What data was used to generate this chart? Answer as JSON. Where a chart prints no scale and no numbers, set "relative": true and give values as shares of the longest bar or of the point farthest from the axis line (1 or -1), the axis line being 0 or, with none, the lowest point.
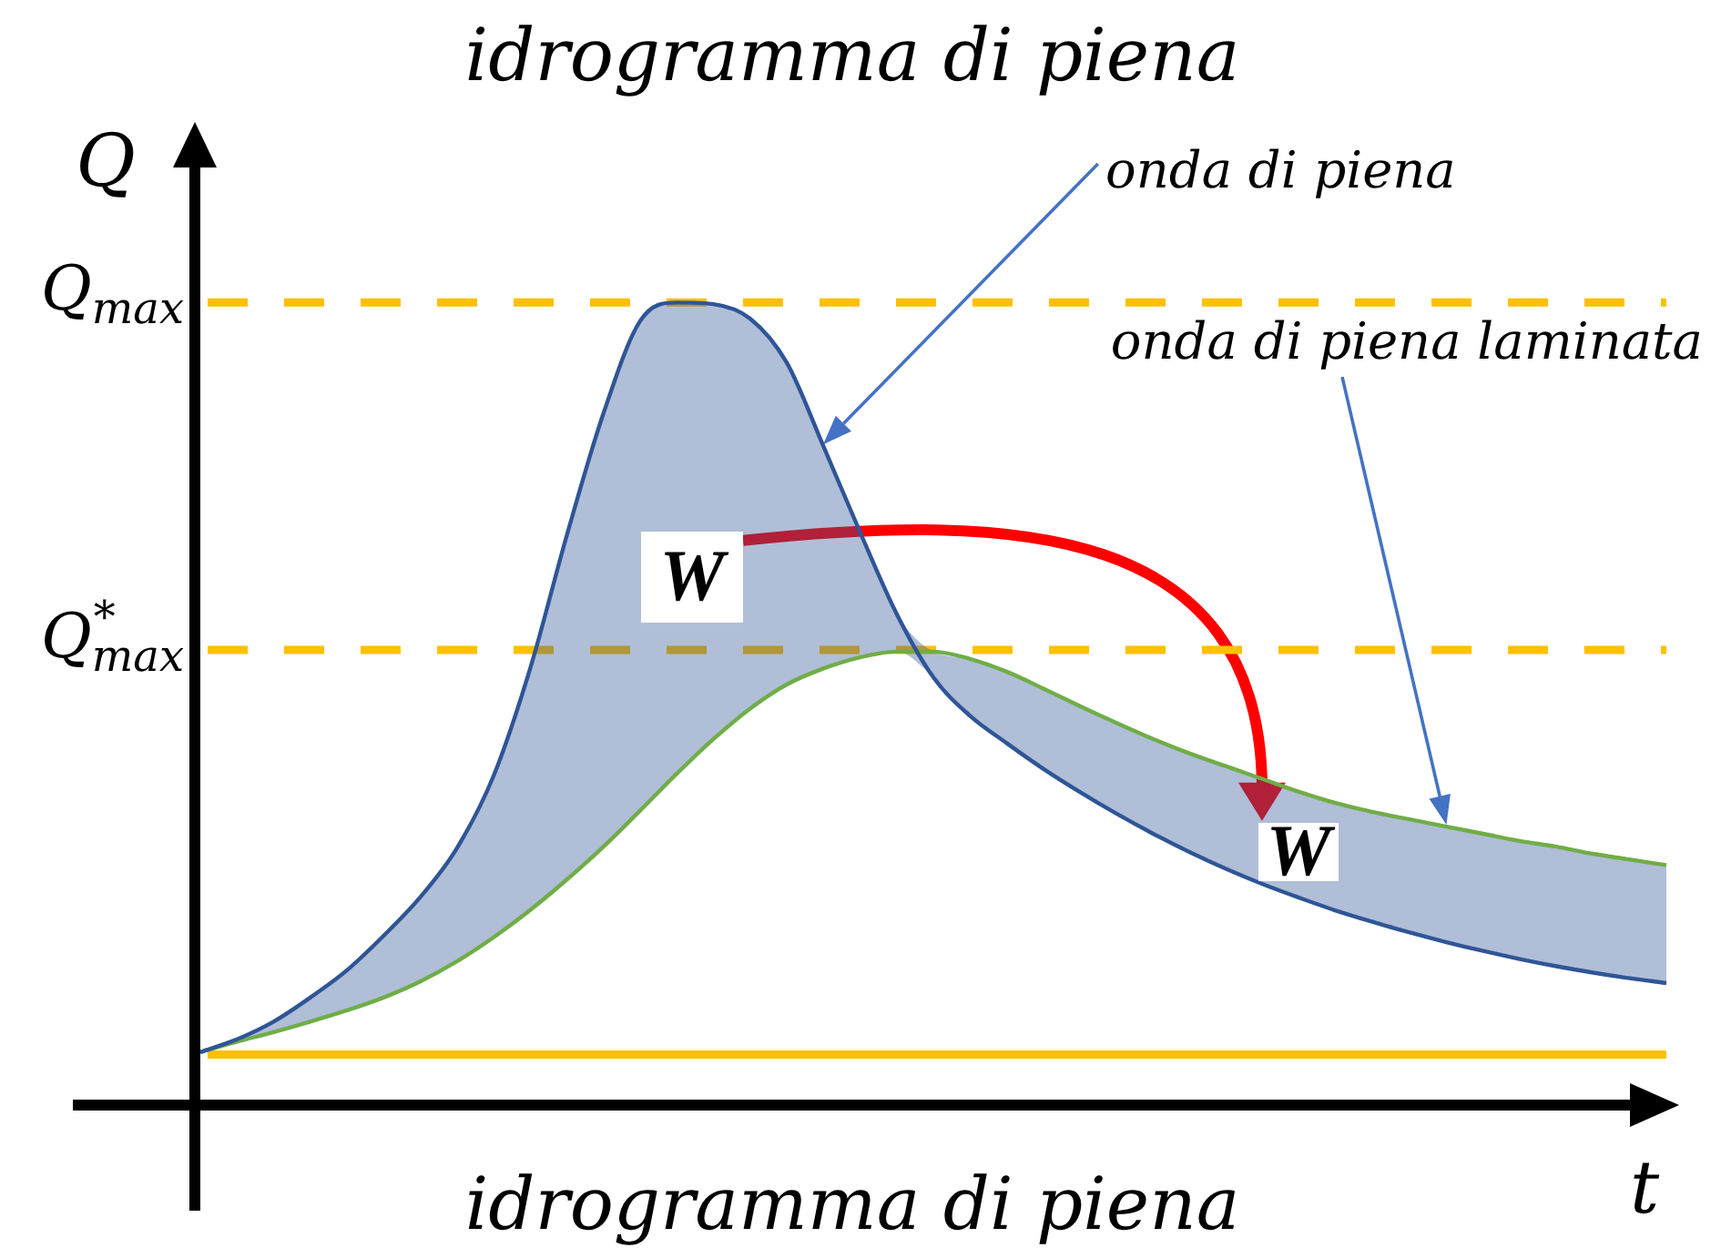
{
  "chart_data": {
    "type": "line",
    "title": "idrogramma di piena",
    "xlabel": "t",
    "ylabel": "Q",
    "relative": true,
    "marker": "none",
    "categories": [
      null,
      null,
      null,
      null,
      null,
      null,
      null,
      null,
      null,
      null,
      null,
      null,
      null,
      null,
      null,
      null,
      null,
      null,
      null,
      null,
      null,
      null,
      null,
      null,
      null,
      null,
      null,
      null,
      null,
      null,
      null,
      null,
      null,
      null,
      null,
      null,
      null,
      null,
      null,
      null,
      null
    ],
    "series": [
      {
        "name": "onda di piena",
        "color": "#2f5597",
        "values": [
          0.066,
          0.082,
          0.104,
          0.134,
          0.168,
          0.211,
          0.259,
          0.32,
          0.41,
          0.544,
          0.71,
          0.862,
          0.977,
          1.0,
          0.998,
          0.98,
          0.925,
          0.821,
          0.714,
          0.612,
          0.533,
          0.485,
          0.451,
          0.419,
          0.39,
          0.363,
          0.338,
          0.315,
          0.294,
          0.275,
          0.258,
          0.242,
          0.228,
          0.215,
          0.203,
          0.192,
          0.182,
          0.173,
          0.165,
          0.158,
          0.152
        ],
        "lower": [
          0.066,
          0.079,
          0.091,
          0.104,
          0.118,
          0.134,
          0.154,
          0.179,
          0.209,
          0.243,
          0.281,
          0.322,
          0.367,
          0.413,
          0.456,
          0.494,
          0.524,
          0.544,
          0.558,
          0.565,
          0.533,
          0.485,
          0.451,
          0.419,
          0.39,
          0.363,
          0.338,
          0.315,
          0.294,
          0.275,
          0.258,
          0.242,
          0.228,
          0.215,
          0.203,
          0.192,
          0.182,
          0.173,
          0.165,
          0.158,
          0.152
        ],
        "upper": [
          0.066,
          0.082,
          0.104,
          0.134,
          0.168,
          0.211,
          0.259,
          0.32,
          0.41,
          0.544,
          0.71,
          0.862,
          0.977,
          1.0,
          0.998,
          0.98,
          0.925,
          0.821,
          0.714,
          0.612,
          0.565,
          0.556,
          0.54,
          0.519,
          0.497,
          0.476,
          0.456,
          0.438,
          0.422,
          0.406,
          0.39,
          0.376,
          0.365,
          0.356,
          0.347,
          0.338,
          0.329,
          0.322,
          0.313,
          0.306,
          0.299
        ]
      },
      {
        "name": "onda di piena laminata",
        "color": "#70ad47",
        "values": [
          0.066,
          0.079,
          0.091,
          0.104,
          0.118,
          0.134,
          0.154,
          0.179,
          0.209,
          0.243,
          0.281,
          0.322,
          0.367,
          0.413,
          0.456,
          0.494,
          0.524,
          0.544,
          0.558,
          0.565,
          0.565,
          0.556,
          0.54,
          0.519,
          0.497,
          0.476,
          0.456,
          0.438,
          0.422,
          0.406,
          0.39,
          0.376,
          0.365,
          0.356,
          0.347,
          0.338,
          0.329,
          0.322,
          0.313,
          0.306,
          0.299
        ]
      }
    ],
    "ref_lines": [
      {
        "axis": "y",
        "value": 1,
        "label": "Q$_{max}$",
        "color": "#ffc000",
        "line_style": "dashed"
      },
      {
        "axis": "y",
        "value": 0.567,
        "label": "Q$^{*}$$_{max}$",
        "color": "#ffc000",
        "line_style": "dashed"
      },
      {
        "axis": "y",
        "value": 0.063,
        "color": "#ffc000",
        "line_style": "solid"
      }
    ],
    "annotations": [
      "W",
      "W",
      "idrogramma di piena"
    ]
  }
}
